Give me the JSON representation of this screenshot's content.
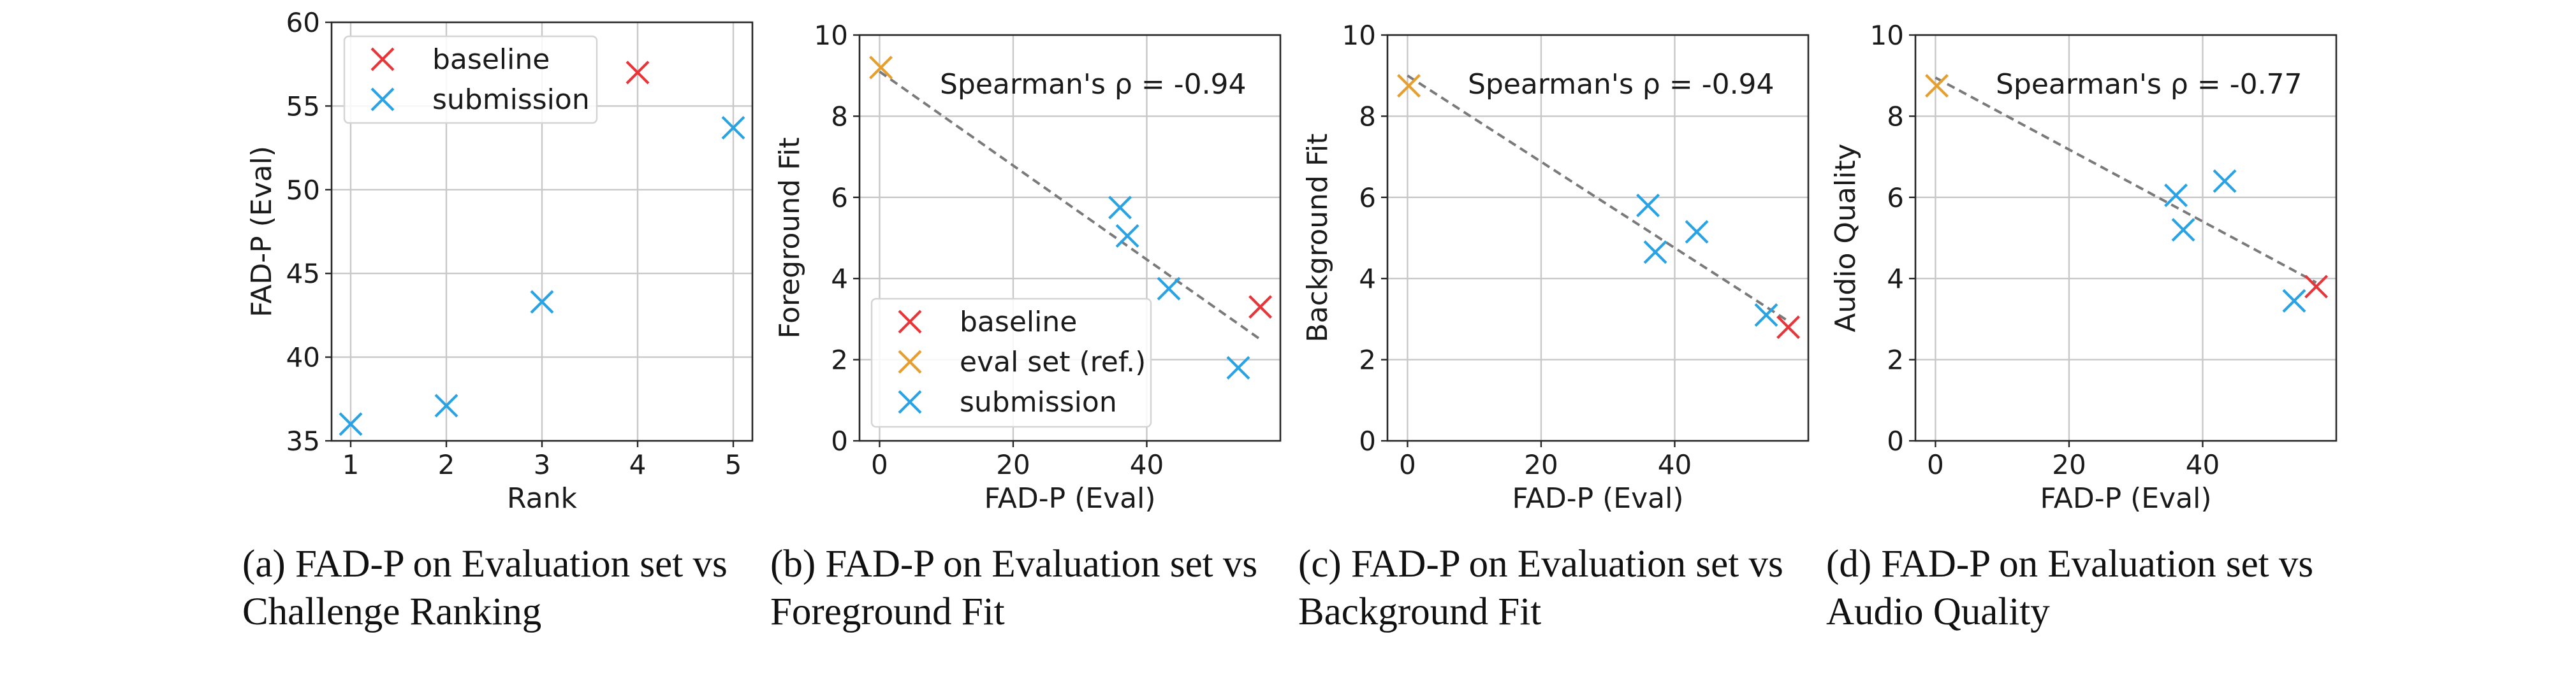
{
  "colors": {
    "baseline": "#e8353a",
    "eval_ref": "#e69f2f",
    "submission": "#2aa3e4"
  },
  "captions": [
    [
      "(a) FAD-P on Evaluation set vs",
      "Challenge Ranking"
    ],
    [
      "(b) FAD-P on Evaluation set vs",
      "Foreground Fit"
    ],
    [
      "(c) FAD-P on Evaluation set vs",
      "Background Fit"
    ],
    [
      "(d) FAD-P on Evaluation set vs",
      "Audio Quality"
    ]
  ],
  "chart_data": [
    {
      "type": "scatter",
      "xlabel": "Rank",
      "ylabel": "FAD-P (Eval)",
      "xlim": [
        0.8,
        5.2
      ],
      "ylim": [
        35,
        60
      ],
      "xticks": [
        1,
        2,
        3,
        4,
        5
      ],
      "yticks": [
        35,
        40,
        45,
        50,
        55,
        60
      ],
      "grid": true,
      "legend": {
        "placement": "upper-left",
        "entries": [
          "baseline",
          "submission"
        ]
      },
      "series": [
        {
          "name": "baseline",
          "x": [
            4
          ],
          "y": [
            57.0
          ]
        },
        {
          "name": "submission",
          "x": [
            1,
            2,
            3,
            5
          ],
          "y": [
            36.0,
            37.1,
            43.3,
            53.7
          ]
        }
      ]
    },
    {
      "type": "scatter",
      "xlabel": "FAD-P (Eval)",
      "ylabel": "Foreground Fit",
      "xlim": [
        -3,
        60
      ],
      "ylim": [
        0,
        10
      ],
      "xticks": [
        0,
        20,
        40
      ],
      "yticks": [
        0,
        2,
        4,
        6,
        8,
        10
      ],
      "grid": true,
      "annotation": "Spearman's ρ = -0.94",
      "trendline": {
        "x": [
          0,
          57
        ],
        "y": [
          9.1,
          2.5
        ]
      },
      "legend": {
        "placement": "lower-left",
        "entries": [
          "baseline",
          "eval set (ref.)",
          "submission"
        ]
      },
      "series": [
        {
          "name": "baseline",
          "x": [
            57.0
          ],
          "y": [
            3.3
          ]
        },
        {
          "name": "eval set (ref.)",
          "x": [
            0.2
          ],
          "y": [
            9.2
          ]
        },
        {
          "name": "submission",
          "x": [
            36.0,
            37.1,
            43.3,
            53.7
          ],
          "y": [
            5.75,
            5.05,
            3.75,
            1.8
          ]
        }
      ]
    },
    {
      "type": "scatter",
      "xlabel": "FAD-P (Eval)",
      "ylabel": "Background Fit",
      "xlim": [
        -3,
        60
      ],
      "ylim": [
        0,
        10
      ],
      "xticks": [
        0,
        20,
        40
      ],
      "yticks": [
        0,
        2,
        4,
        6,
        8,
        10
      ],
      "grid": true,
      "annotation": "Spearman's ρ = -0.94",
      "trendline": {
        "x": [
          0,
          57
        ],
        "y": [
          9.0,
          2.95
        ]
      },
      "series": [
        {
          "name": "baseline",
          "x": [
            57.0
          ],
          "y": [
            2.8
          ]
        },
        {
          "name": "eval set (ref.)",
          "x": [
            0.2
          ],
          "y": [
            8.75
          ]
        },
        {
          "name": "submission",
          "x": [
            36.0,
            37.1,
            43.3,
            53.7
          ],
          "y": [
            5.8,
            4.65,
            5.15,
            3.1
          ]
        }
      ]
    },
    {
      "type": "scatter",
      "xlabel": "FAD-P (Eval)",
      "ylabel": "Audio Quality",
      "xlim": [
        -3,
        60
      ],
      "ylim": [
        0,
        10
      ],
      "xticks": [
        0,
        20,
        40
      ],
      "yticks": [
        0,
        2,
        4,
        6,
        8,
        10
      ],
      "grid": true,
      "annotation": "Spearman's ρ = -0.77",
      "trendline": {
        "x": [
          0,
          57
        ],
        "y": [
          8.95,
          3.9
        ]
      },
      "series": [
        {
          "name": "baseline",
          "x": [
            57.0
          ],
          "y": [
            3.8
          ]
        },
        {
          "name": "eval set (ref.)",
          "x": [
            0.2
          ],
          "y": [
            8.75
          ]
        },
        {
          "name": "submission",
          "x": [
            36.0,
            37.1,
            43.3,
            53.7
          ],
          "y": [
            6.05,
            5.2,
            6.4,
            3.45
          ]
        }
      ]
    }
  ]
}
